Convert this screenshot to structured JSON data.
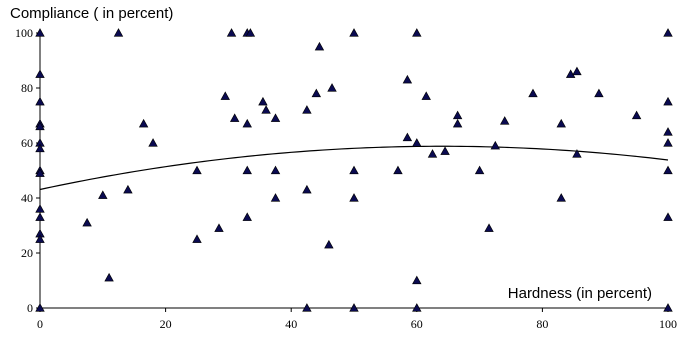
{
  "chart_data": {
    "type": "scatter",
    "title": "Compliance ( in percent)",
    "xlabel": "Hardness (in percent)",
    "ylabel": "Compliance ( in percent)",
    "xlim": [
      0,
      100
    ],
    "ylim": [
      0,
      100
    ],
    "xticks": [
      0,
      20,
      40,
      60,
      80,
      100
    ],
    "yticks": [
      0,
      20,
      40,
      60,
      80,
      100
    ],
    "grid": false,
    "legend": "none",
    "marker_color": "#0a0a50",
    "trendline": {
      "type": "polynomial",
      "color": "#000000",
      "points": [
        {
          "x": 0,
          "y": 43
        },
        {
          "x": 20,
          "y": 51.5
        },
        {
          "x": 40,
          "y": 56.7
        },
        {
          "x": 60,
          "y": 58.8
        },
        {
          "x": 80,
          "y": 57.5
        },
        {
          "x": 100,
          "y": 54
        }
      ]
    },
    "series": [
      {
        "points": [
          {
            "x": 0,
            "y": 100
          },
          {
            "x": 0,
            "y": 85
          },
          {
            "x": 0,
            "y": 75
          },
          {
            "x": 0,
            "y": 67
          },
          {
            "x": 0,
            "y": 66
          },
          {
            "x": 0,
            "y": 60
          },
          {
            "x": 0,
            "y": 58
          },
          {
            "x": 0,
            "y": 50
          },
          {
            "x": 0,
            "y": 49
          },
          {
            "x": 0,
            "y": 36
          },
          {
            "x": 0,
            "y": 33
          },
          {
            "x": 0,
            "y": 27
          },
          {
            "x": 0,
            "y": 25
          },
          {
            "x": 0,
            "y": 0
          },
          {
            "x": 7.5,
            "y": 31
          },
          {
            "x": 10,
            "y": 41
          },
          {
            "x": 11,
            "y": 11
          },
          {
            "x": 12.5,
            "y": 100
          },
          {
            "x": 14,
            "y": 43
          },
          {
            "x": 16.5,
            "y": 67
          },
          {
            "x": 18,
            "y": 60
          },
          {
            "x": 25,
            "y": 50
          },
          {
            "x": 25,
            "y": 25
          },
          {
            "x": 28.5,
            "y": 29
          },
          {
            "x": 29.5,
            "y": 77
          },
          {
            "x": 30.5,
            "y": 100
          },
          {
            "x": 31,
            "y": 69
          },
          {
            "x": 33,
            "y": 100
          },
          {
            "x": 33.5,
            "y": 100
          },
          {
            "x": 33,
            "y": 67
          },
          {
            "x": 33,
            "y": 50
          },
          {
            "x": 33,
            "y": 33
          },
          {
            "x": 35.5,
            "y": 75
          },
          {
            "x": 36,
            "y": 72
          },
          {
            "x": 37.5,
            "y": 69
          },
          {
            "x": 37.5,
            "y": 50
          },
          {
            "x": 37.5,
            "y": 40
          },
          {
            "x": 42.5,
            "y": 72
          },
          {
            "x": 42.5,
            "y": 43
          },
          {
            "x": 42.5,
            "y": 0
          },
          {
            "x": 44,
            "y": 78
          },
          {
            "x": 44.5,
            "y": 95
          },
          {
            "x": 46,
            "y": 23
          },
          {
            "x": 46.5,
            "y": 80
          },
          {
            "x": 50,
            "y": 100
          },
          {
            "x": 50,
            "y": 50
          },
          {
            "x": 50,
            "y": 40
          },
          {
            "x": 50,
            "y": 0
          },
          {
            "x": 57,
            "y": 50
          },
          {
            "x": 58.5,
            "y": 83
          },
          {
            "x": 58.5,
            "y": 62
          },
          {
            "x": 60,
            "y": 100
          },
          {
            "x": 60,
            "y": 60
          },
          {
            "x": 60,
            "y": 10
          },
          {
            "x": 60,
            "y": 0
          },
          {
            "x": 61.5,
            "y": 77
          },
          {
            "x": 62.5,
            "y": 56
          },
          {
            "x": 64.5,
            "y": 57
          },
          {
            "x": 66.5,
            "y": 70
          },
          {
            "x": 66.5,
            "y": 67
          },
          {
            "x": 70,
            "y": 50
          },
          {
            "x": 71.5,
            "y": 29
          },
          {
            "x": 72.5,
            "y": 59
          },
          {
            "x": 74,
            "y": 68
          },
          {
            "x": 78.5,
            "y": 78
          },
          {
            "x": 83,
            "y": 67
          },
          {
            "x": 83,
            "y": 40
          },
          {
            "x": 84.5,
            "y": 85
          },
          {
            "x": 85.5,
            "y": 86
          },
          {
            "x": 85.5,
            "y": 56
          },
          {
            "x": 89,
            "y": 78
          },
          {
            "x": 95,
            "y": 70
          },
          {
            "x": 100,
            "y": 100
          },
          {
            "x": 100,
            "y": 75
          },
          {
            "x": 100,
            "y": 64
          },
          {
            "x": 100,
            "y": 60
          },
          {
            "x": 100,
            "y": 50
          },
          {
            "x": 100,
            "y": 33
          },
          {
            "x": 100,
            "y": 0
          }
        ]
      }
    ]
  }
}
